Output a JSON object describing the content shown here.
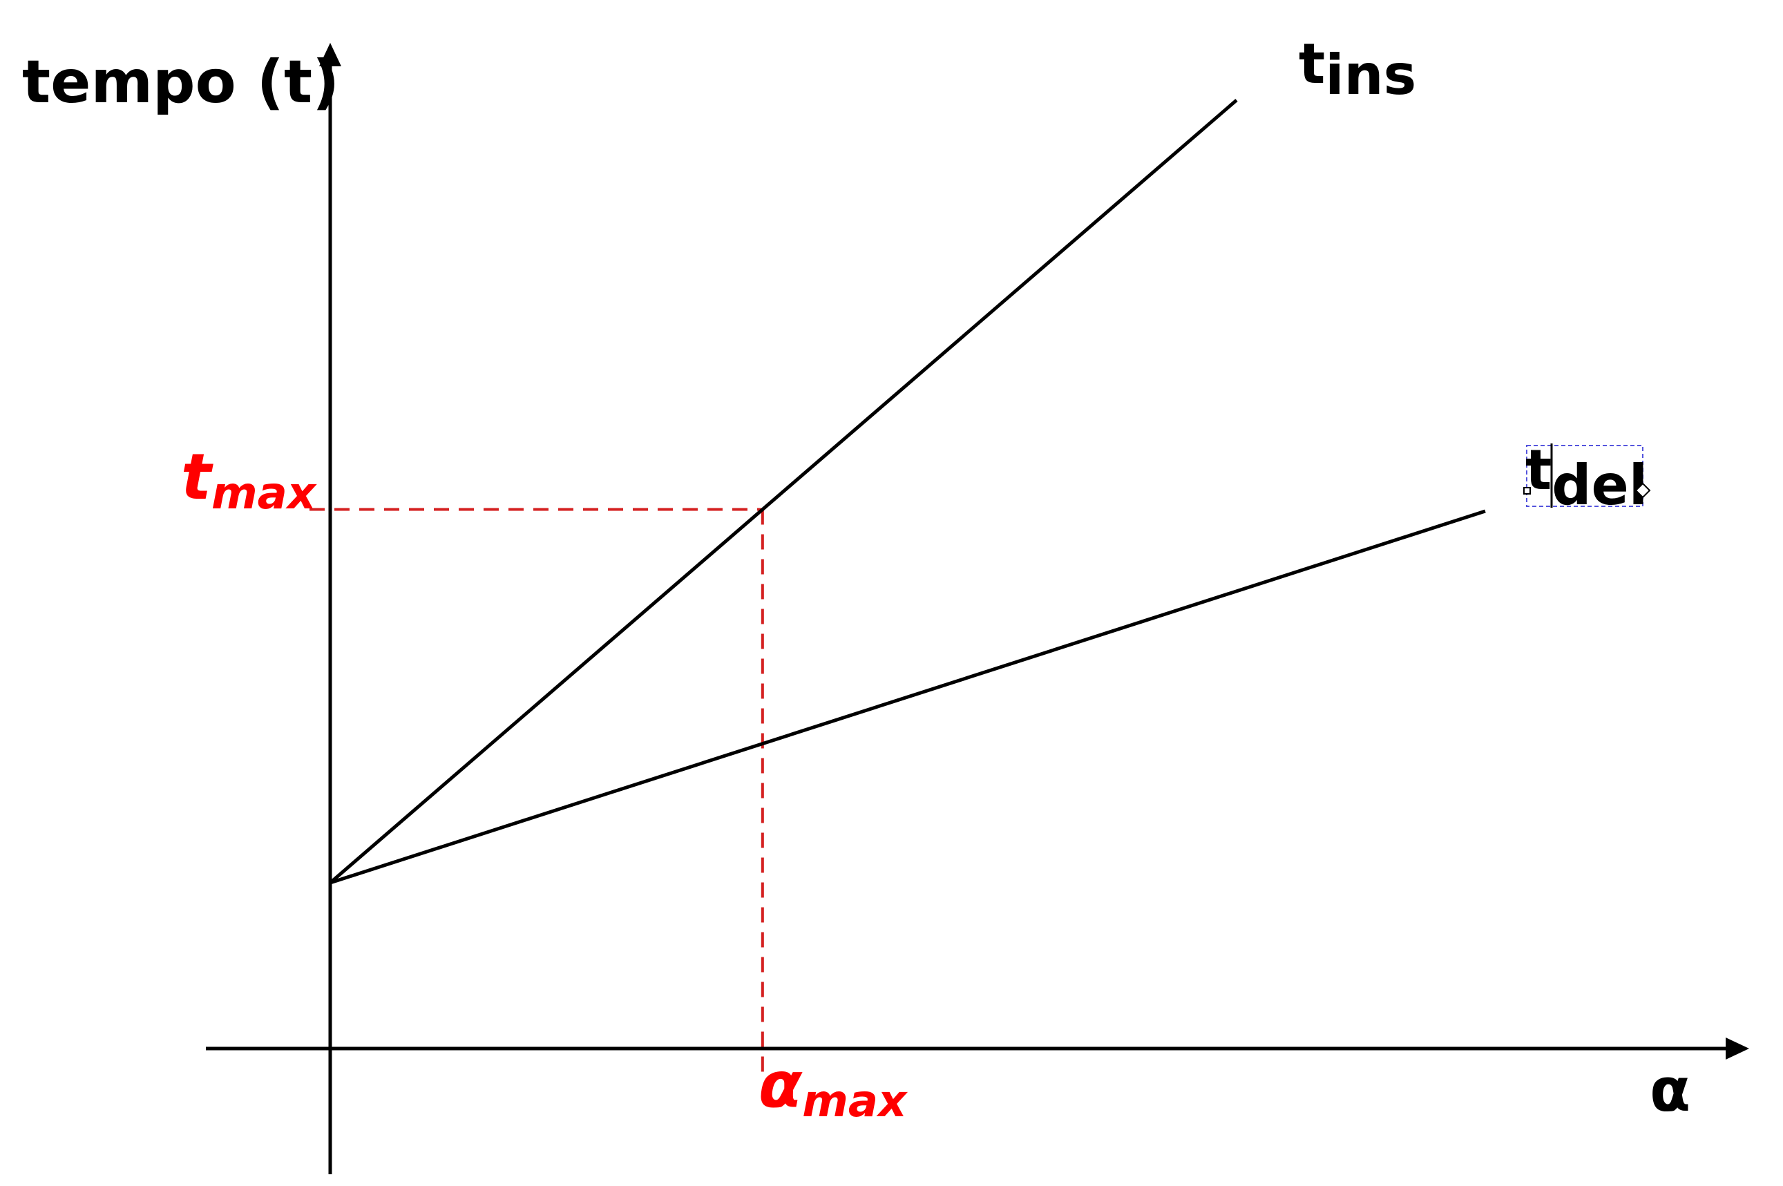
{
  "chart_data": {
    "type": "line",
    "ylabel": "tempo (t)",
    "xlabel": "α",
    "series": [
      {
        "name_main": "t",
        "name_sub": "ins",
        "x": [
          0,
          1
        ],
        "y": [
          0,
          1
        ]
      },
      {
        "name_main": "t",
        "name_sub": "del",
        "x": [
          0,
          1
        ],
        "y": [
          0,
          0.48
        ]
      }
    ],
    "annotations": {
      "t_max": {
        "main": "t",
        "sub": "max",
        "y": 0.47
      },
      "a_max": {
        "main": "α",
        "sub": "max",
        "x": 0.477
      }
    },
    "grid": false,
    "legend": "inline labels at line ends"
  },
  "colors": {
    "lines": "#000000",
    "axes": "#000000",
    "annotation": "#d42020",
    "annotation_text": "#ff0000",
    "selection": "#5555dd"
  }
}
